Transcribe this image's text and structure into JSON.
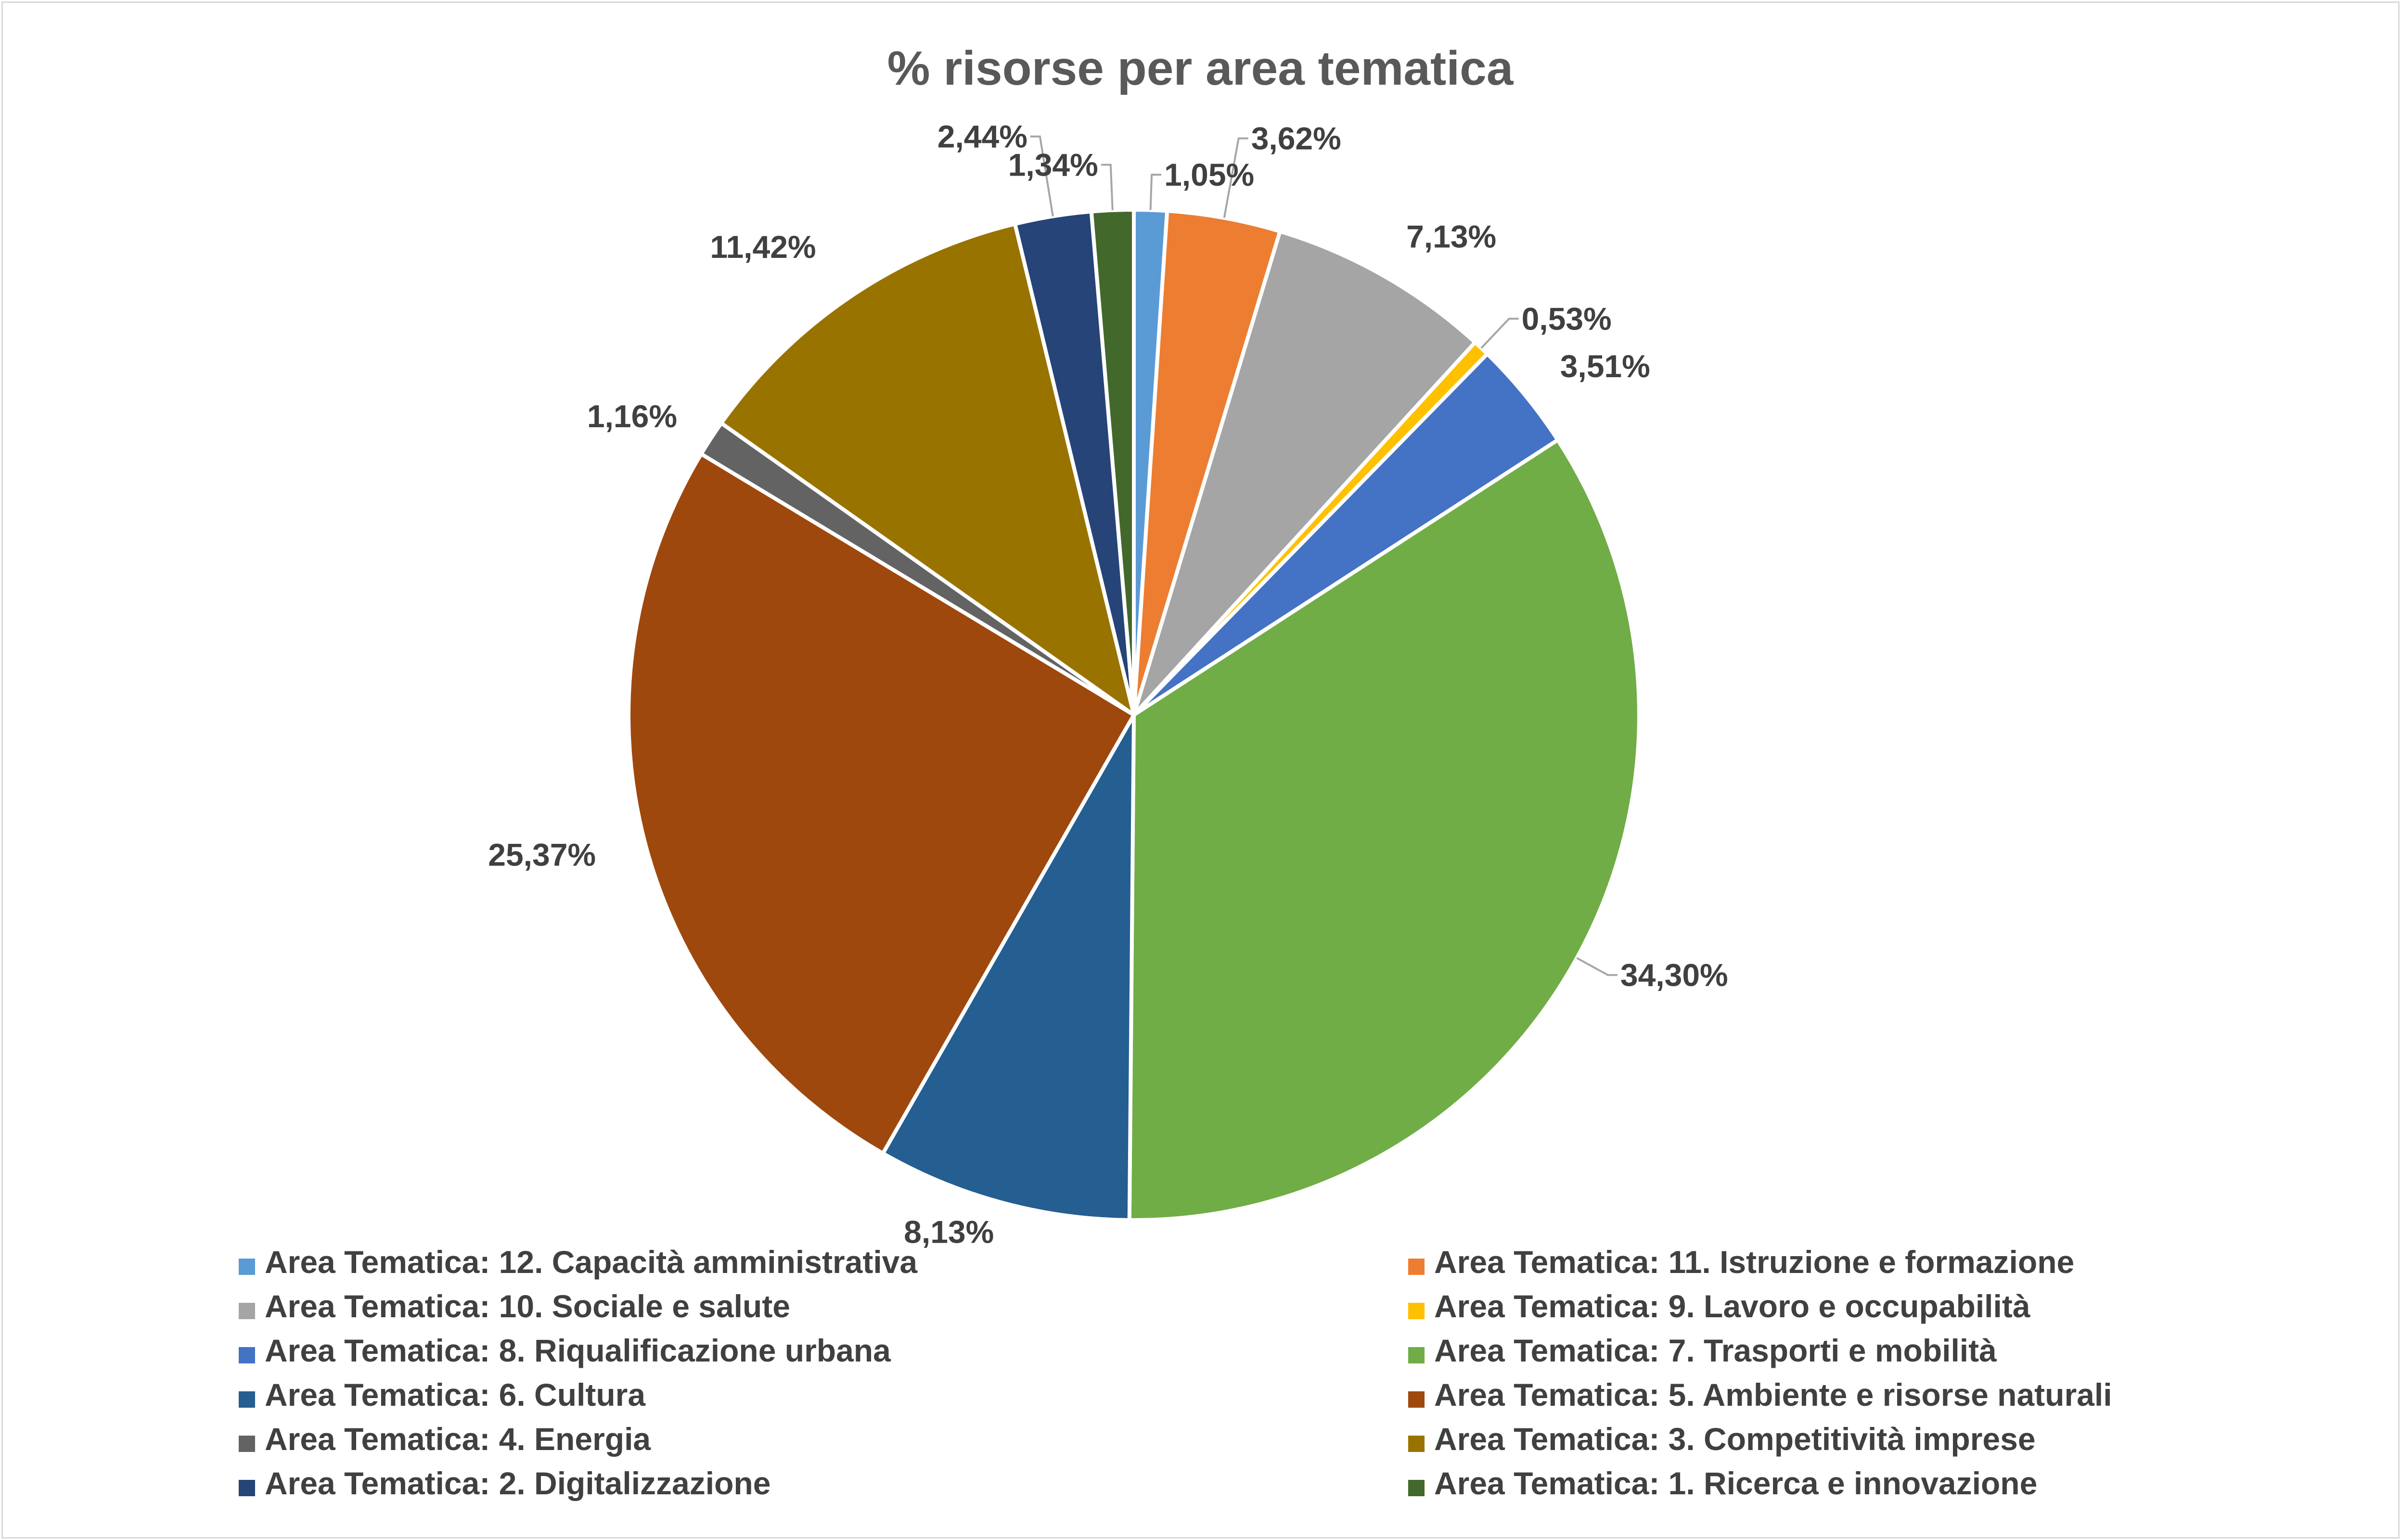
{
  "chart_data": {
    "type": "pie",
    "title": "% risorse per area tematica",
    "legend_position": "bottom",
    "series": [
      {
        "name": "Area Tematica: 12. Capacità amministrativa",
        "value": 1.05,
        "label": "1,05%",
        "color": "#5b9bd5"
      },
      {
        "name": "Area Tematica: 11. Istruzione e formazione",
        "value": 3.62,
        "label": "3,62%",
        "color": "#ed7d31"
      },
      {
        "name": "Area Tematica: 10. Sociale e salute",
        "value": 7.13,
        "label": "7,13%",
        "color": "#a5a5a5"
      },
      {
        "name": "Area Tematica: 9. Lavoro e occupabilità",
        "value": 0.53,
        "label": "0,53%",
        "color": "#ffc000"
      },
      {
        "name": "Area Tematica: 8. Riqualificazione urbana",
        "value": 3.51,
        "label": "3,51%",
        "color": "#4472c4"
      },
      {
        "name": "Area Tematica: 7. Trasporti e mobilità",
        "value": 34.3,
        "label": "34,30%",
        "color": "#70ad47"
      },
      {
        "name": "Area Tematica: 6. Cultura",
        "value": 8.13,
        "label": "8,13%",
        "color": "#255e91"
      },
      {
        "name": "Area Tematica: 5. Ambiente e risorse naturali",
        "value": 25.37,
        "label": "25,37%",
        "color": "#9e480e"
      },
      {
        "name": "Area Tematica: 4. Energia",
        "value": 1.16,
        "label": "1,16%",
        "color": "#636363"
      },
      {
        "name": "Area Tematica: 3. Competitività imprese",
        "value": 11.42,
        "label": "11,42%",
        "color": "#997300"
      },
      {
        "name": "Area Tematica: 2. Digitalizzazione",
        "value": 2.44,
        "label": "2,44%",
        "color": "#264478"
      },
      {
        "name": "Area Tematica: 1. Ricerca e innovazione",
        "value": 1.34,
        "label": "1,34%",
        "color": "#43682b"
      }
    ]
  }
}
